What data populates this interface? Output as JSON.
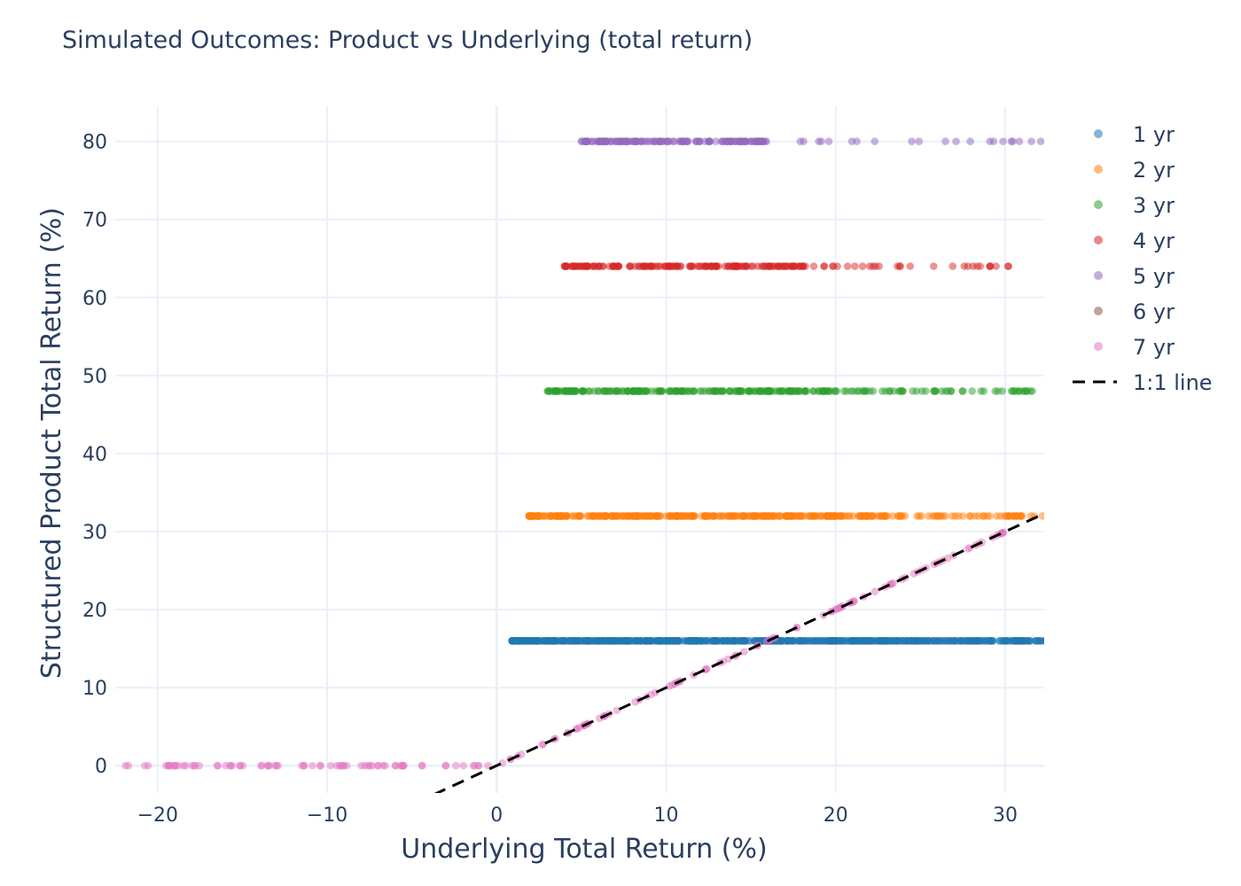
{
  "chart_data": {
    "type": "scatter",
    "title": "Simulated Outcomes: Product vs Underlying (total return)",
    "xlabel": "Underlying Total Return (%)",
    "ylabel": "Structured Product Total Return (%)",
    "xlim": [
      -22.5,
      32.3
    ],
    "ylim": [
      -3.5,
      84.5
    ],
    "xticks": [
      -20,
      -10,
      0,
      10,
      20,
      30
    ],
    "xtick_labels": [
      "−20",
      "−10",
      "0",
      "10",
      "20",
      "30"
    ],
    "yticks": [
      0,
      10,
      20,
      30,
      40,
      50,
      60,
      70,
      80
    ],
    "ytick_labels": [
      "0",
      "10",
      "20",
      "30",
      "40",
      "50",
      "60",
      "70",
      "80"
    ],
    "grid": true,
    "legend_position": "right",
    "series": [
      {
        "name": "1 yr",
        "color": "#1f77b4",
        "y": 16,
        "x_min": 0.9,
        "x_max": 32.3,
        "x_dense_end": 26,
        "n": 700
      },
      {
        "name": "2 yr",
        "color": "#ff7f0e",
        "y": 32,
        "x_min": 1.9,
        "x_max": 32.2,
        "x_dense_end": 23,
        "n": 380
      },
      {
        "name": "3 yr",
        "color": "#2ca02c",
        "y": 48,
        "x_min": 3.0,
        "x_max": 31.6,
        "x_dense_end": 20,
        "n": 260
      },
      {
        "name": "4 yr",
        "color": "#d62728",
        "y": 64,
        "x_min": 4.0,
        "x_max": 30.2,
        "x_dense_end": 18,
        "n": 200
      },
      {
        "name": "5 yr",
        "color": "#9467bd",
        "y": 80,
        "x_min": 5.0,
        "x_max": 32.1,
        "x_dense_end": 16,
        "n": 170
      },
      {
        "name": "6 yr",
        "color": "#8c564b",
        "n": 0
      },
      {
        "name": "7 yr",
        "color": "#e377c2",
        "payoff": "max(0, x)",
        "x_min": -22.0,
        "x_max": 30.0,
        "n": 180
      }
    ],
    "reference_line": {
      "name": "1:1 line",
      "color": "#000000",
      "style": "dashed",
      "x": [
        -3.7,
        32.3
      ],
      "y": [
        -3.7,
        32.3
      ]
    }
  }
}
